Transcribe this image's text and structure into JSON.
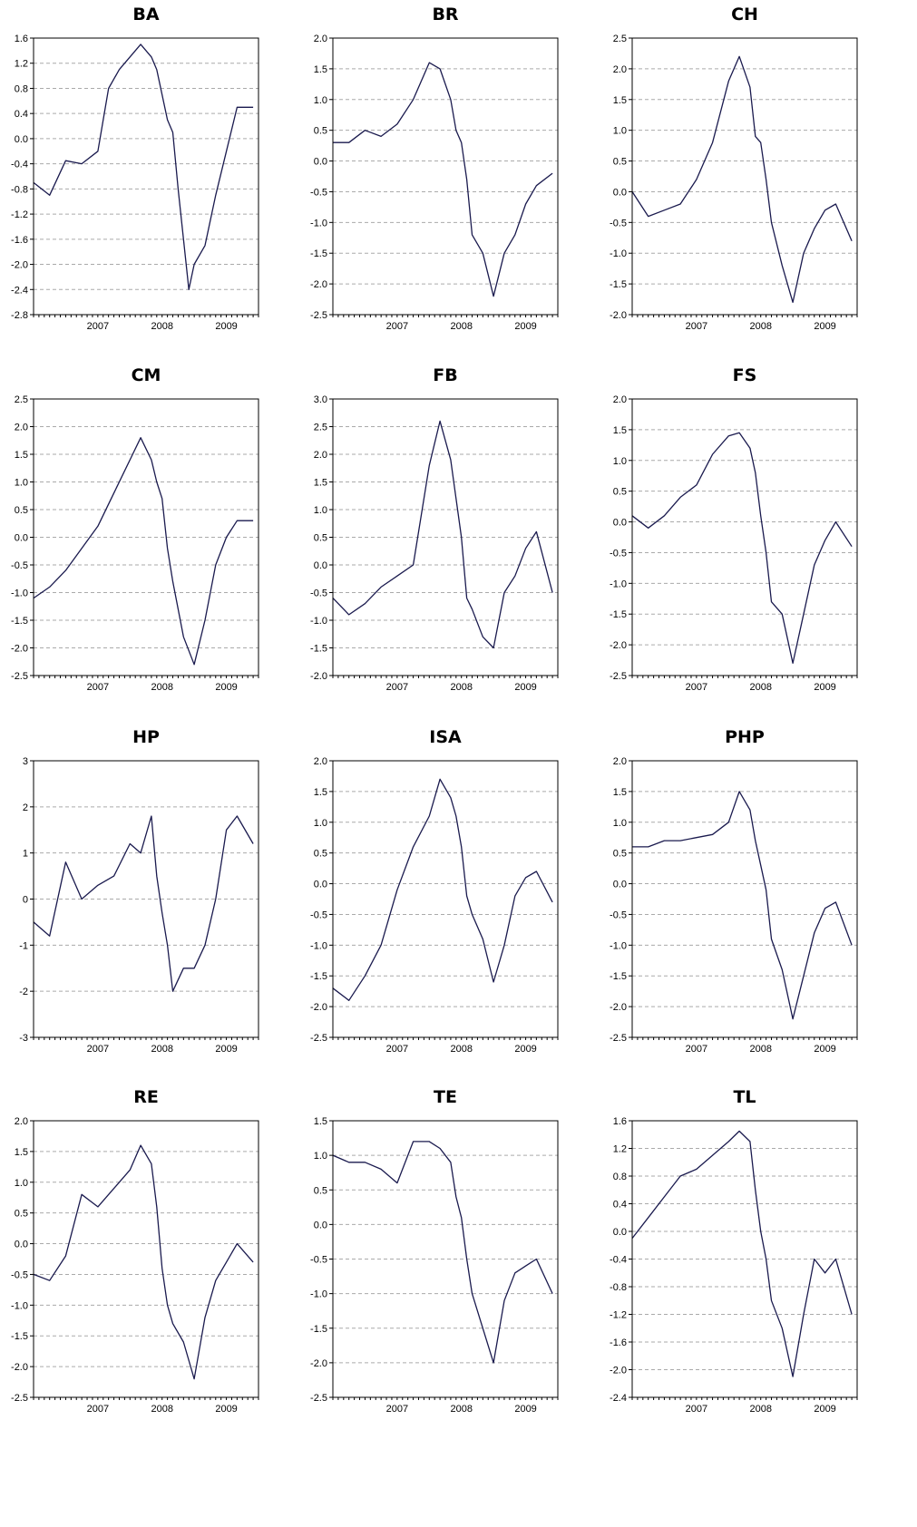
{
  "figure": {
    "series_color": "#1a1a4e",
    "grid_color": "#aaaaaa",
    "x_tick_labels": [
      "2007",
      "2008",
      "2009"
    ]
  },
  "chart_data": [
    {
      "type": "line",
      "title": "BA",
      "x_range": [
        "2006-07",
        "2009-12"
      ],
      "ylim": [
        -2.8,
        1.6
      ],
      "y_ticks": [
        "1.6",
        "1.2",
        "0.8",
        "0.4",
        "0.0",
        "-0.4",
        "-0.8",
        "-1.2",
        "-1.6",
        "-2.0",
        "-2.4",
        "-2.8"
      ],
      "grid": true,
      "series": [
        {
          "x": [
            "2006-07",
            "2006-10",
            "2007-01",
            "2007-04",
            "2007-07",
            "2007-09",
            "2007-11",
            "2008-01",
            "2008-03",
            "2008-05",
            "2008-06",
            "2008-08",
            "2008-09",
            "2008-10",
            "2008-11",
            "2008-12",
            "2009-01",
            "2009-03",
            "2009-05",
            "2009-07",
            "2009-09",
            "2009-12"
          ],
          "y": [
            -0.7,
            -0.9,
            -0.35,
            -0.4,
            -0.2,
            0.8,
            1.1,
            1.3,
            1.5,
            1.3,
            1.1,
            0.3,
            0.1,
            -0.8,
            -1.6,
            -2.4,
            -2.0,
            -1.7,
            -0.9,
            -0.2,
            0.5,
            0.5
          ]
        }
      ]
    },
    {
      "type": "line",
      "title": "BR",
      "x_range": [
        "2006-07",
        "2009-12"
      ],
      "ylim": [
        -2.5,
        2.0
      ],
      "y_ticks": [
        "2.0",
        "1.5",
        "1.0",
        "0.5",
        "0.0",
        "-0.5",
        "-1.0",
        "-1.5",
        "-2.0",
        "-2.5"
      ],
      "grid": true,
      "series": [
        {
          "x": [
            "2006-07",
            "2006-10",
            "2007-01",
            "2007-04",
            "2007-07",
            "2007-10",
            "2008-01",
            "2008-03",
            "2008-05",
            "2008-06",
            "2008-07",
            "2008-08",
            "2008-09",
            "2008-11",
            "2009-01",
            "2009-03",
            "2009-05",
            "2009-07",
            "2009-09",
            "2009-12"
          ],
          "y": [
            0.3,
            0.3,
            0.5,
            0.4,
            0.6,
            1.0,
            1.6,
            1.5,
            1.0,
            0.5,
            0.3,
            -0.3,
            -1.2,
            -1.5,
            -2.2,
            -1.5,
            -1.2,
            -0.7,
            -0.4,
            -0.2
          ]
        }
      ]
    },
    {
      "type": "line",
      "title": "CH",
      "x_range": [
        "2006-07",
        "2009-12"
      ],
      "ylim": [
        -2.0,
        2.5
      ],
      "y_ticks": [
        "2.5",
        "2.0",
        "1.5",
        "1.0",
        "0.5",
        "0.0",
        "-0.5",
        "-1.0",
        "-1.5",
        "-2.0"
      ],
      "grid": true,
      "series": [
        {
          "x": [
            "2006-07",
            "2006-10",
            "2007-01",
            "2007-04",
            "2007-07",
            "2007-10",
            "2008-01",
            "2008-03",
            "2008-05",
            "2008-06",
            "2008-07",
            "2008-08",
            "2008-09",
            "2008-11",
            "2009-01",
            "2009-03",
            "2009-05",
            "2009-07",
            "2009-09",
            "2009-12"
          ],
          "y": [
            0.0,
            -0.4,
            -0.3,
            -0.2,
            0.2,
            0.8,
            1.8,
            2.2,
            1.7,
            0.9,
            0.8,
            0.2,
            -0.5,
            -1.2,
            -1.8,
            -1.0,
            -0.6,
            -0.3,
            -0.2,
            -0.8
          ]
        }
      ]
    },
    {
      "type": "line",
      "title": "CM",
      "x_range": [
        "2006-07",
        "2009-12"
      ],
      "ylim": [
        -2.5,
        2.5
      ],
      "y_ticks": [
        "2.5",
        "2.0",
        "1.5",
        "1.0",
        "0.5",
        "0.0",
        "-0.5",
        "-1.0",
        "-1.5",
        "-2.0",
        "-2.5"
      ],
      "grid": true,
      "series": [
        {
          "x": [
            "2006-07",
            "2006-10",
            "2007-01",
            "2007-04",
            "2007-07",
            "2007-10",
            "2008-01",
            "2008-03",
            "2008-05",
            "2008-06",
            "2008-07",
            "2008-08",
            "2008-09",
            "2008-11",
            "2009-01",
            "2009-03",
            "2009-05",
            "2009-07",
            "2009-09",
            "2009-12"
          ],
          "y": [
            -1.1,
            -0.9,
            -0.6,
            -0.2,
            0.2,
            0.8,
            1.4,
            1.8,
            1.4,
            1.0,
            0.7,
            -0.2,
            -0.8,
            -1.8,
            -2.3,
            -1.5,
            -0.5,
            0.0,
            0.3,
            0.3
          ]
        }
      ]
    },
    {
      "type": "line",
      "title": "FB",
      "x_range": [
        "2006-07",
        "2009-12"
      ],
      "ylim": [
        -2.0,
        3.0
      ],
      "y_ticks": [
        "3.0",
        "2.5",
        "2.0",
        "1.5",
        "1.0",
        "0.5",
        "0.0",
        "-0.5",
        "-1.0",
        "-1.5",
        "-2.0"
      ],
      "grid": true,
      "series": [
        {
          "x": [
            "2006-07",
            "2006-10",
            "2007-01",
            "2007-04",
            "2007-07",
            "2007-10",
            "2008-01",
            "2008-03",
            "2008-05",
            "2008-06",
            "2008-07",
            "2008-08",
            "2008-09",
            "2008-11",
            "2009-01",
            "2009-03",
            "2009-05",
            "2009-07",
            "2009-09",
            "2009-12"
          ],
          "y": [
            -0.6,
            -0.9,
            -0.7,
            -0.4,
            -0.2,
            0.0,
            1.8,
            2.6,
            1.9,
            1.2,
            0.5,
            -0.6,
            -0.8,
            -1.3,
            -1.5,
            -0.5,
            -0.2,
            0.3,
            0.6,
            -0.5
          ]
        }
      ]
    },
    {
      "type": "line",
      "title": "FS",
      "x_range": [
        "2006-07",
        "2009-12"
      ],
      "ylim": [
        -2.5,
        2.0
      ],
      "y_ticks": [
        "2.0",
        "1.5",
        "1.0",
        "0.5",
        "0.0",
        "-0.5",
        "-1.0",
        "-1.5",
        "-2.0",
        "-2.5"
      ],
      "grid": true,
      "series": [
        {
          "x": [
            "2006-07",
            "2006-10",
            "2007-01",
            "2007-04",
            "2007-07",
            "2007-10",
            "2008-01",
            "2008-03",
            "2008-05",
            "2008-06",
            "2008-07",
            "2008-08",
            "2008-09",
            "2008-11",
            "2009-01",
            "2009-03",
            "2009-05",
            "2009-07",
            "2009-09",
            "2009-12"
          ],
          "y": [
            0.1,
            -0.1,
            0.1,
            0.4,
            0.6,
            1.1,
            1.4,
            1.45,
            1.2,
            0.8,
            0.1,
            -0.5,
            -1.3,
            -1.5,
            -2.3,
            -1.5,
            -0.7,
            -0.3,
            0.0,
            -0.4
          ]
        }
      ]
    },
    {
      "type": "line",
      "title": "HP",
      "x_range": [
        "2006-07",
        "2009-12"
      ],
      "ylim": [
        -3,
        3
      ],
      "y_ticks": [
        "3",
        "2",
        "1",
        "0",
        "-1",
        "-2",
        "-3"
      ],
      "grid": true,
      "series": [
        {
          "x": [
            "2006-07",
            "2006-10",
            "2007-01",
            "2007-04",
            "2007-07",
            "2007-10",
            "2008-01",
            "2008-03",
            "2008-05",
            "2008-06",
            "2008-07",
            "2008-08",
            "2008-09",
            "2008-11",
            "2009-01",
            "2009-03",
            "2009-05",
            "2009-07",
            "2009-09",
            "2009-12"
          ],
          "y": [
            -0.5,
            -0.8,
            0.8,
            0.0,
            0.3,
            0.5,
            1.2,
            1.0,
            1.8,
            0.5,
            -0.3,
            -1.0,
            -2.0,
            -1.5,
            -1.5,
            -1.0,
            0.0,
            1.5,
            1.8,
            1.2
          ]
        }
      ]
    },
    {
      "type": "line",
      "title": "ISA",
      "x_range": [
        "2006-07",
        "2009-12"
      ],
      "ylim": [
        -2.5,
        2.0
      ],
      "y_ticks": [
        "2.0",
        "1.5",
        "1.0",
        "0.5",
        "0.0",
        "-0.5",
        "-1.0",
        "-1.5",
        "-2.0",
        "-2.5"
      ],
      "grid": true,
      "series": [
        {
          "x": [
            "2006-07",
            "2006-10",
            "2007-01",
            "2007-04",
            "2007-07",
            "2007-10",
            "2008-01",
            "2008-03",
            "2008-05",
            "2008-06",
            "2008-07",
            "2008-08",
            "2008-09",
            "2008-11",
            "2009-01",
            "2009-03",
            "2009-05",
            "2009-07",
            "2009-09",
            "2009-12"
          ],
          "y": [
            -1.7,
            -1.9,
            -1.5,
            -1.0,
            -0.1,
            0.6,
            1.1,
            1.7,
            1.4,
            1.1,
            0.6,
            -0.2,
            -0.5,
            -0.9,
            -1.6,
            -1.0,
            -0.2,
            0.1,
            0.2,
            -0.3
          ]
        }
      ]
    },
    {
      "type": "line",
      "title": "PHP",
      "x_range": [
        "2006-07",
        "2009-12"
      ],
      "ylim": [
        -2.5,
        2.0
      ],
      "y_ticks": [
        "2.0",
        "1.5",
        "1.0",
        "0.5",
        "0.0",
        "-0.5",
        "-1.0",
        "-1.5",
        "-2.0",
        "-2.5"
      ],
      "grid": true,
      "series": [
        {
          "x": [
            "2006-07",
            "2006-10",
            "2007-01",
            "2007-04",
            "2007-07",
            "2007-10",
            "2008-01",
            "2008-03",
            "2008-05",
            "2008-06",
            "2008-07",
            "2008-08",
            "2008-09",
            "2008-11",
            "2009-01",
            "2009-03",
            "2009-05",
            "2009-07",
            "2009-09",
            "2009-12"
          ],
          "y": [
            0.6,
            0.6,
            0.7,
            0.7,
            0.75,
            0.8,
            1.0,
            1.5,
            1.2,
            0.7,
            0.3,
            -0.1,
            -0.9,
            -1.4,
            -2.2,
            -1.5,
            -0.8,
            -0.4,
            -0.3,
            -1.0
          ]
        }
      ]
    },
    {
      "type": "line",
      "title": "RE",
      "x_range": [
        "2006-07",
        "2009-12"
      ],
      "ylim": [
        -2.5,
        2.0
      ],
      "y_ticks": [
        "2.0",
        "1.5",
        "1.0",
        "0.5",
        "0.0",
        "-0.5",
        "-1.0",
        "-1.5",
        "-2.0",
        "-2.5"
      ],
      "grid": true,
      "series": [
        {
          "x": [
            "2006-07",
            "2006-10",
            "2007-01",
            "2007-04",
            "2007-07",
            "2007-10",
            "2008-01",
            "2008-03",
            "2008-05",
            "2008-06",
            "2008-07",
            "2008-08",
            "2008-09",
            "2008-11",
            "2009-01",
            "2009-03",
            "2009-05",
            "2009-07",
            "2009-09",
            "2009-12"
          ],
          "y": [
            -0.5,
            -0.6,
            -0.2,
            0.8,
            0.6,
            0.9,
            1.2,
            1.6,
            1.3,
            0.6,
            -0.4,
            -1.0,
            -1.3,
            -1.6,
            -2.2,
            -1.2,
            -0.6,
            -0.3,
            0.0,
            -0.3
          ]
        }
      ]
    },
    {
      "type": "line",
      "title": "TE",
      "x_range": [
        "2006-07",
        "2009-12"
      ],
      "ylim": [
        -2.5,
        1.5
      ],
      "y_ticks": [
        "1.5",
        "1.0",
        "0.5",
        "0.0",
        "-0.5",
        "-1.0",
        "-1.5",
        "-2.0",
        "-2.5"
      ],
      "grid": true,
      "series": [
        {
          "x": [
            "2006-07",
            "2006-10",
            "2007-01",
            "2007-04",
            "2007-07",
            "2007-10",
            "2008-01",
            "2008-03",
            "2008-05",
            "2008-06",
            "2008-07",
            "2008-08",
            "2008-09",
            "2008-11",
            "2009-01",
            "2009-03",
            "2009-05",
            "2009-07",
            "2009-09",
            "2009-12"
          ],
          "y": [
            1.0,
            0.9,
            0.9,
            0.8,
            0.6,
            1.2,
            1.2,
            1.1,
            0.9,
            0.4,
            0.1,
            -0.5,
            -1.0,
            -1.5,
            -2.0,
            -1.1,
            -0.7,
            -0.6,
            -0.5,
            -1.0
          ]
        }
      ]
    },
    {
      "type": "line",
      "title": "TL",
      "x_range": [
        "2006-07",
        "2009-12"
      ],
      "ylim": [
        -2.4,
        1.6
      ],
      "y_ticks": [
        "1.6",
        "1.2",
        "0.8",
        "0.4",
        "0.0",
        "-0.4",
        "-0.8",
        "-1.2",
        "-1.6",
        "-2.0",
        "-2.4"
      ],
      "grid": true,
      "series": [
        {
          "x": [
            "2006-07",
            "2006-10",
            "2007-01",
            "2007-04",
            "2007-07",
            "2007-10",
            "2008-01",
            "2008-03",
            "2008-05",
            "2008-06",
            "2008-07",
            "2008-08",
            "2008-09",
            "2008-11",
            "2009-01",
            "2009-03",
            "2009-05",
            "2009-07",
            "2009-09",
            "2009-12"
          ],
          "y": [
            -0.1,
            0.2,
            0.5,
            0.8,
            0.9,
            1.1,
            1.3,
            1.45,
            1.3,
            0.6,
            0.0,
            -0.4,
            -1.0,
            -1.4,
            -2.1,
            -1.2,
            -0.4,
            -0.6,
            -0.4,
            -1.2
          ]
        }
      ]
    }
  ]
}
